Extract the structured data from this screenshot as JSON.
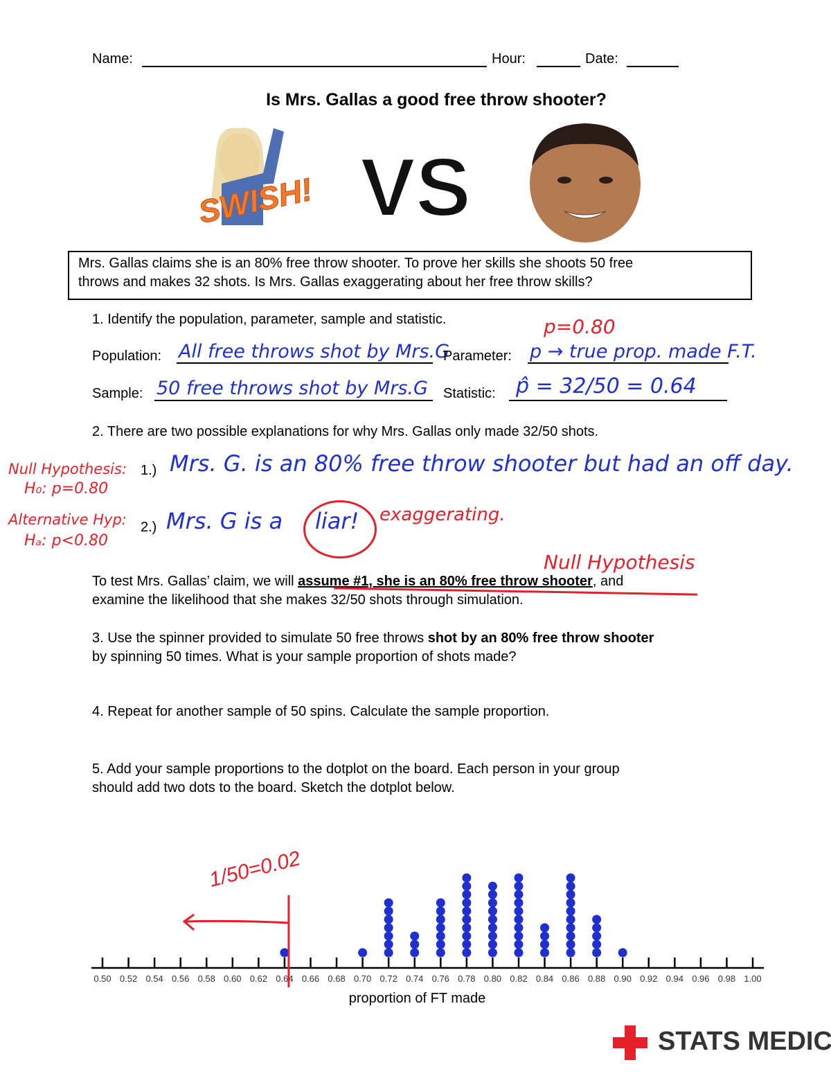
{
  "header": {
    "name_label": "Name:",
    "hour_label": "Hour:",
    "date_label": "Date:"
  },
  "title": "Is Mrs. Gallas a good free throw shooter?",
  "images": {
    "swish": "SWISH!",
    "vs": "VS"
  },
  "claim": [
    "Mrs. Gallas claims she is an 80% free throw shooter.  To prove her skills she shoots 50 free",
    "throws and makes 32 shots.  Is Mrs. Gallas exaggerating about her free throw skills?"
  ],
  "q1": {
    "text": "1. Identify the population, parameter, sample and statistic.",
    "population_label": "Population:",
    "population_answer": "All free throws shot by Mrs.G",
    "parameter_label": "Parameter:",
    "parameter_answer": "p → true prop. made F.T.",
    "parameter_note": "p=0.80",
    "sample_label": "Sample:",
    "sample_answer": "50 free throws shot by Mrs.G",
    "statistic_label": "Statistic:",
    "statistic_answer": "p̂ = 32/50 = 0.64"
  },
  "q2": {
    "text": "2.  There are two possible explanations for why Mrs. Gallas only made 32/50 shots.",
    "option1_label": "1.)",
    "option1_answer": "Mrs. G. is an 80% free throw shooter but had an off day.",
    "option2_label": "2.)",
    "option2_answer": "Mrs. G is a",
    "option2_circled": "liar!",
    "option2_extra": "exaggerating.",
    "null_note": [
      "Null Hypothesis:",
      "H₀: p=0.80"
    ],
    "alt_note": [
      "Alternative Hyp:",
      "Hₐ: p<0.80"
    ]
  },
  "test": {
    "before": "To test Mrs. Gallas’ claim, we will ",
    "bold": "assume #1, she is an 80% free throw shooter",
    "after": ", and",
    "line2": "examine the likelihood that she makes 32/50 shots through simulation.",
    "note": "Null Hypothesis"
  },
  "q3": {
    "before": "3. Use the spinner provided to simulate 50 free throws ",
    "bold": "shot by an 80% free throw shooter",
    "line2": "by spinning 50 times.  What is your sample proportion of shots made?"
  },
  "q4": "4. Repeat for another sample of 50 spins. Calculate the sample proportion.",
  "q5": [
    "5.  Add your sample proportions to the dotplot on the board.  Each person in your group",
    "should add two dots to the board.  Sketch the dotplot below."
  ],
  "dotplot": {
    "xlabel": "proportion of FT made",
    "xlim": [
      0.5,
      1.0
    ],
    "xticks": [
      {
        "value": 0.5,
        "label": "0.50"
      },
      {
        "value": 0.52,
        "label": "0.52"
      },
      {
        "value": 0.54,
        "label": "0.54"
      },
      {
        "value": 0.56,
        "label": "0.56"
      },
      {
        "value": 0.58,
        "label": "0.58"
      },
      {
        "value": 0.6,
        "label": "0.60"
      },
      {
        "value": 0.62,
        "label": "0.62"
      },
      {
        "value": 0.64,
        "label": "0.64"
      },
      {
        "value": 0.66,
        "label": "0.66"
      },
      {
        "value": 0.68,
        "label": "0.68"
      },
      {
        "value": 0.7,
        "label": "0.70"
      },
      {
        "value": 0.72,
        "label": "0.72"
      },
      {
        "value": 0.74,
        "label": "0.74"
      },
      {
        "value": 0.76,
        "label": "0.76"
      },
      {
        "value": 0.78,
        "label": "0.78"
      },
      {
        "value": 0.8,
        "label": "0.80"
      },
      {
        "value": 0.82,
        "label": "0.82"
      },
      {
        "value": 0.84,
        "label": "0.84"
      },
      {
        "value": 0.86,
        "label": "0.86"
      },
      {
        "value": 0.88,
        "label": "0.88"
      },
      {
        "value": 0.9,
        "label": "0.90"
      },
      {
        "value": 0.92,
        "label": "0.92"
      },
      {
        "value": 0.94,
        "label": "0.94"
      },
      {
        "value": 0.96,
        "label": "0.96"
      },
      {
        "value": 0.98,
        "label": "0.98"
      },
      {
        "value": 1.0,
        "label": "1.00"
      }
    ],
    "x": [
      0.64,
      0.7,
      0.72,
      0.74,
      0.76,
      0.78,
      0.8,
      0.82,
      0.84,
      0.86,
      0.88,
      0.9
    ],
    "counts": [
      1,
      1,
      7,
      3,
      7,
      10,
      9,
      10,
      4,
      10,
      5,
      1
    ],
    "color": "#1f2fd0",
    "cutoff": 0.64,
    "note": "1/50=0.02"
  },
  "footer": {
    "logo": "STATS MEDIC"
  }
}
